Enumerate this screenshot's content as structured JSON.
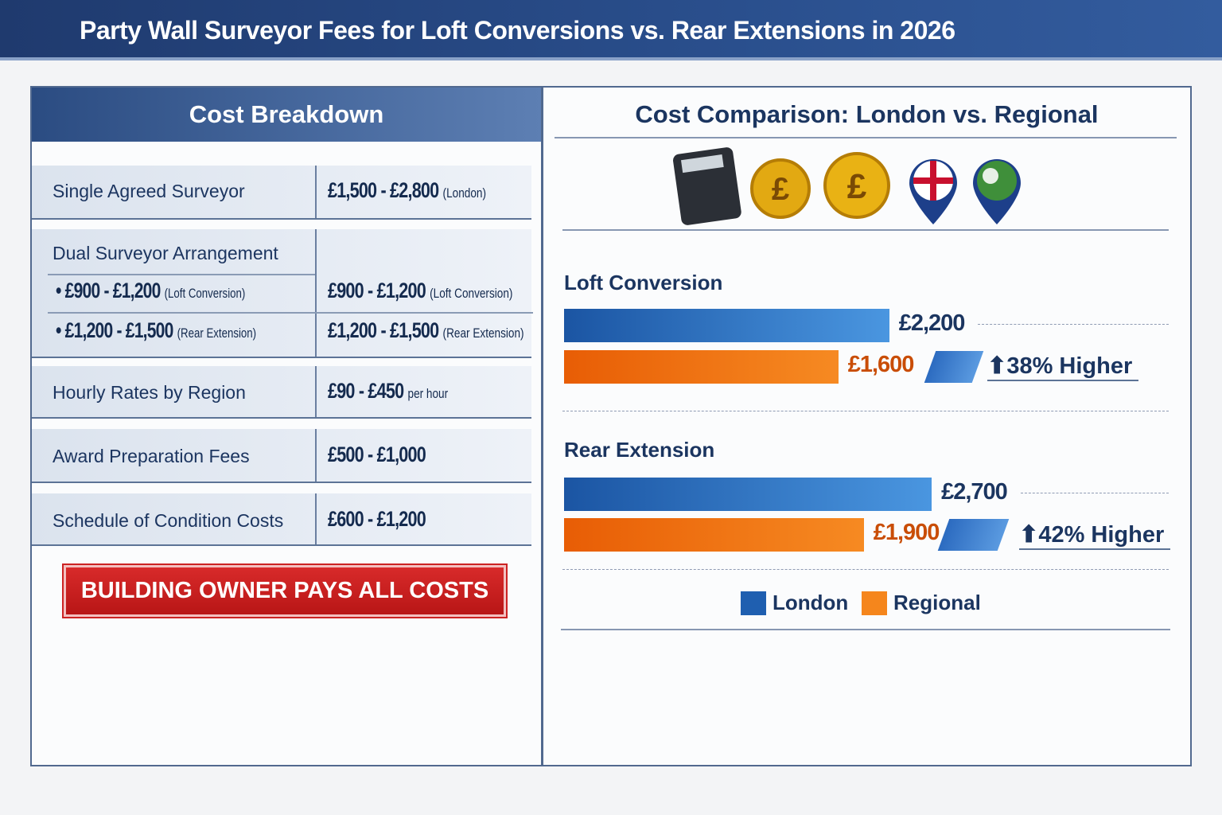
{
  "title": "Party Wall Surveyor Fees for Loft Conversions vs. Rear Extensions in 2026",
  "breakdown": {
    "heading": "Cost Breakdown",
    "rows": [
      {
        "label": "Single Agreed Surveyor",
        "value": "£1,500 - £2,800",
        "note": "(London)"
      },
      {
        "label": "Dual Surveyor Arrangement",
        "subs": [
          {
            "bullet": "£900 - £1,200",
            "note": "(Loft Conversion)",
            "value": "£900 - £1,200",
            "vnote": "(Loft Conversion)"
          },
          {
            "bullet": "£1,200 - £1,500",
            "note": "(Rear Extension)",
            "value": "£1,200 - £1,500",
            "vnote": "(Rear Extension)"
          }
        ]
      },
      {
        "label": "Hourly Rates by Region",
        "value": "£90 - £450",
        "note": "per hour"
      },
      {
        "label": "Award Preparation Fees",
        "value": "£500 - £1,000"
      },
      {
        "label": "Schedule of Condition Costs",
        "value": "£600 - £1,200"
      }
    ],
    "banner": "BUILDING OWNER PAYS ALL COSTS"
  },
  "chart_data": {
    "type": "bar",
    "title": "Cost Comparison: London vs. Regional",
    "categories": [
      "Loft Conversion",
      "Rear Extension"
    ],
    "series": [
      {
        "name": "London",
        "color": "#1f5fb0",
        "values": [
          2200,
          2700
        ],
        "labels": [
          "£2,200",
          "£2,700"
        ]
      },
      {
        "name": "Regional",
        "color": "#f07a14",
        "values": [
          1600,
          1900
        ],
        "labels": [
          "£1,600",
          "£1,900"
        ]
      }
    ],
    "annotations": [
      "38% Higher",
      "42% Higher"
    ],
    "icons": [
      "calculator-icon",
      "pound-coin-icon",
      "pound-coin-icon",
      "uk-flag-pin-icon",
      "globe-pin-icon"
    ]
  }
}
